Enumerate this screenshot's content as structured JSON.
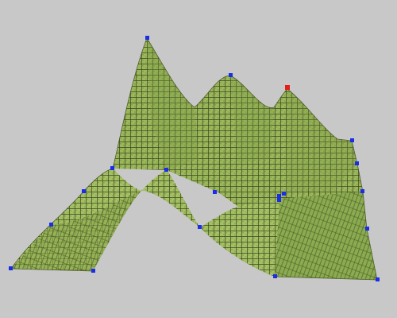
{
  "scene": {
    "background_color": "#c8c8c8",
    "surface_color": "#9ab85a",
    "surface_shadow_color": "#7f9c45",
    "mesh_line_color": "#1a1a0a",
    "control_point_color": "#1a2ee8",
    "selected_control_point_color": "#e81a1a",
    "control_point_count": 23,
    "selected_control_point_count": 1
  }
}
